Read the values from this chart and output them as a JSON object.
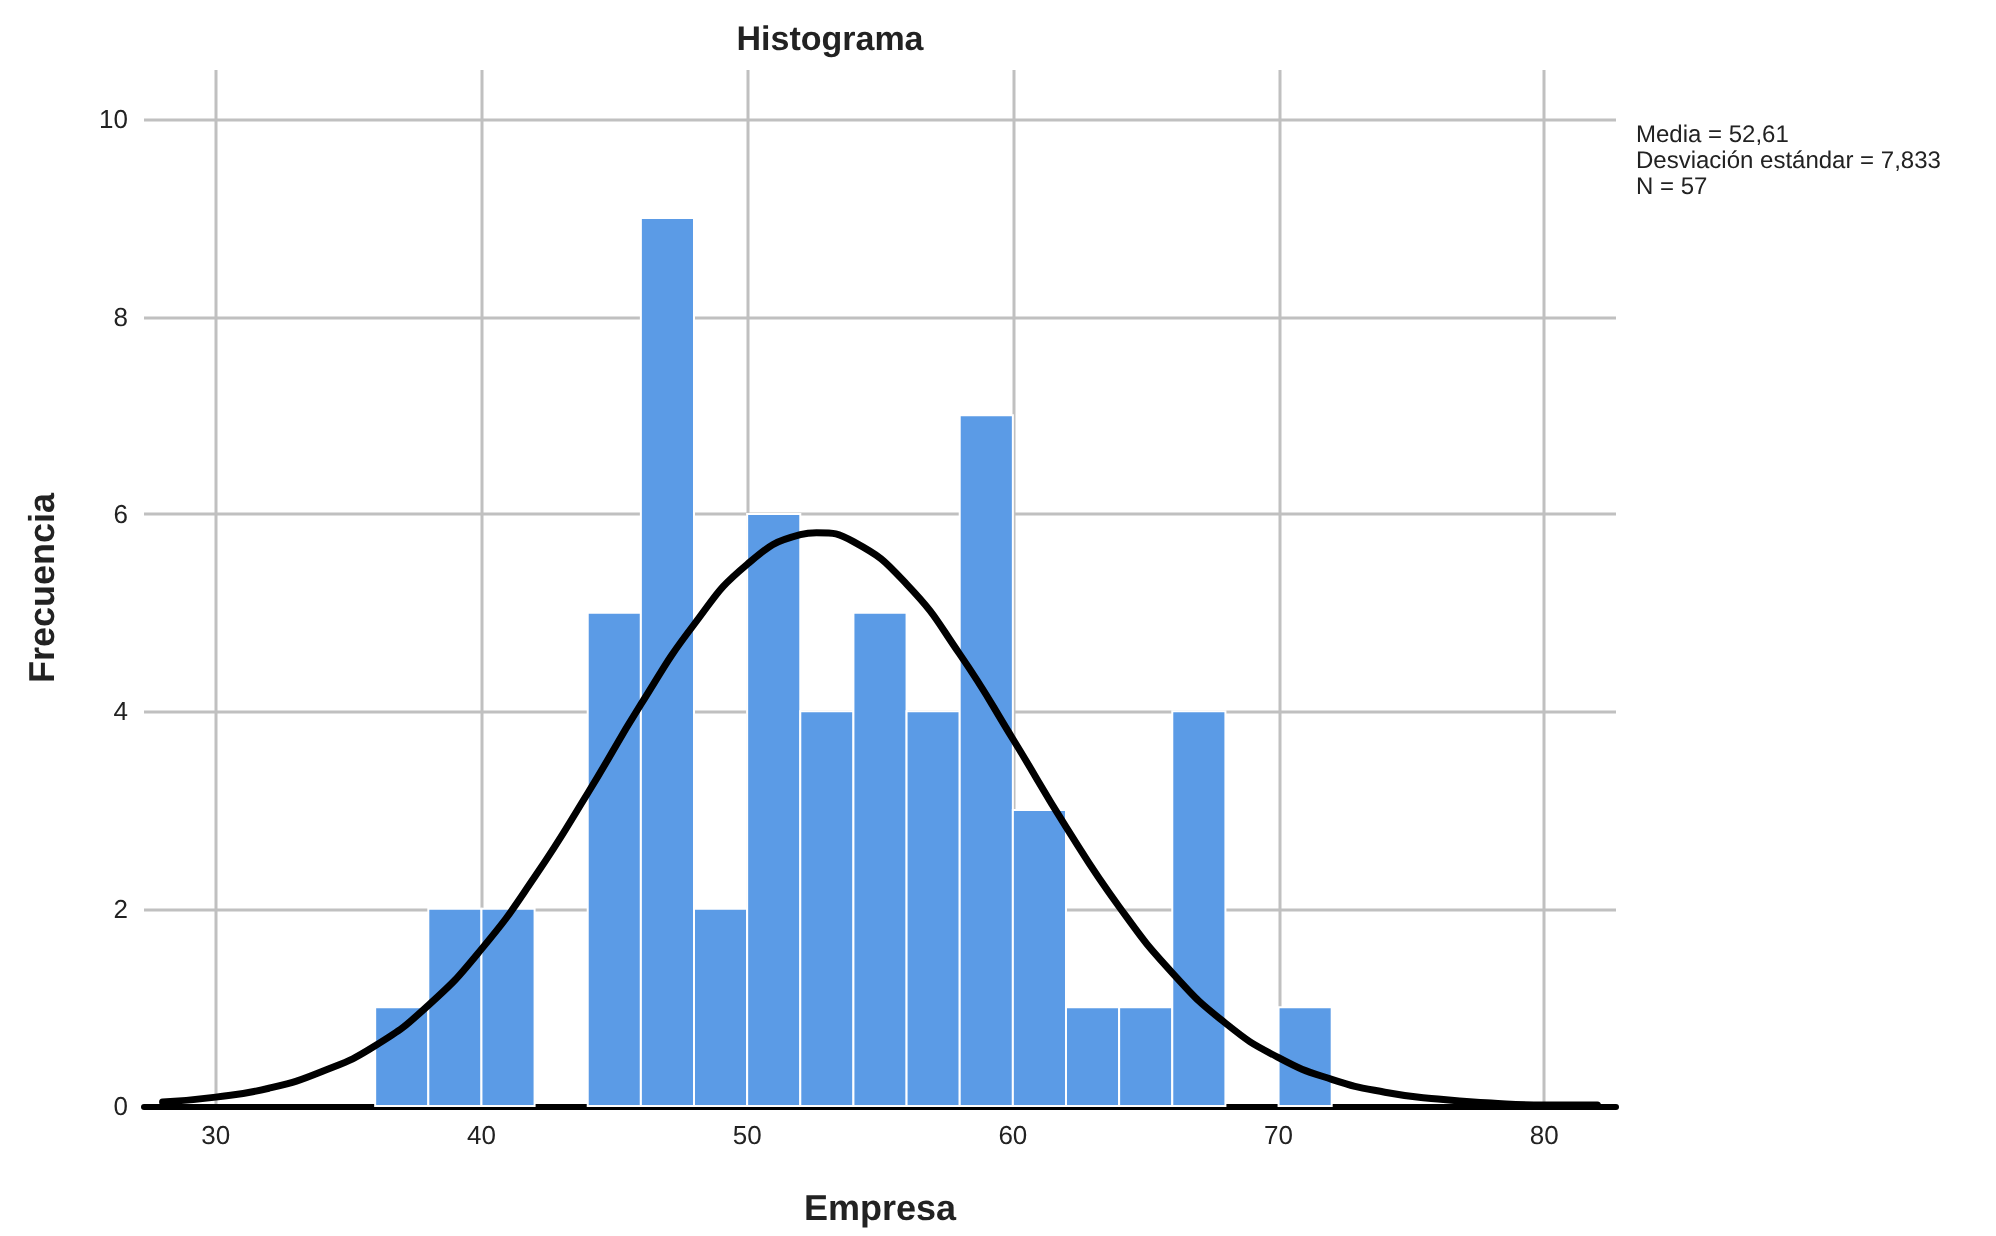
{
  "chart_data": {
    "type": "histogram",
    "title": "Histograma",
    "xlabel": "Empresa",
    "ylabel": "Frecuencia",
    "annotations": [
      "Media = 52,61",
      "Desviación estándar = 7,833",
      "N = 57"
    ],
    "xlim": [
      27.3,
      82.7
    ],
    "xticks": [
      30,
      40,
      50,
      60,
      70,
      80
    ],
    "ylim": [
      0,
      10.5
    ],
    "yticks": [
      0,
      2,
      4,
      6,
      8,
      10
    ],
    "grid": true,
    "marker": "none",
    "line_style": "solid",
    "series": [
      {
        "color": "#5b9be6",
        "bins": [
          36,
          38,
          40,
          42,
          44,
          46,
          48,
          50,
          52,
          54,
          56,
          58,
          60,
          62,
          64,
          66,
          68,
          70,
          72
        ],
        "values": [
          1,
          2,
          2,
          0,
          5,
          9,
          2,
          6,
          4,
          5,
          4,
          7,
          3,
          1,
          1,
          4,
          0,
          1
        ]
      },
      {
        "type": "line",
        "color": "#000000",
        "x": [
          28,
          30,
          32,
          34,
          36,
          38,
          40,
          42,
          44,
          46,
          48,
          50,
          52,
          52.61,
          54,
          56,
          58,
          60,
          62,
          64,
          66,
          68,
          70,
          72,
          74,
          76,
          78,
          80,
          82
        ],
        "values": [
          0.04,
          0.09,
          0.18,
          0.35,
          0.61,
          1.02,
          1.59,
          2.32,
          3.17,
          4.07,
          4.88,
          5.49,
          5.79,
          5.81,
          5.72,
          5.29,
          4.58,
          3.72,
          2.83,
          2.02,
          1.35,
          0.84,
          0.49,
          0.27,
          0.14,
          0.07,
          0.03,
          0.01,
          0.01
        ]
      }
    ]
  }
}
